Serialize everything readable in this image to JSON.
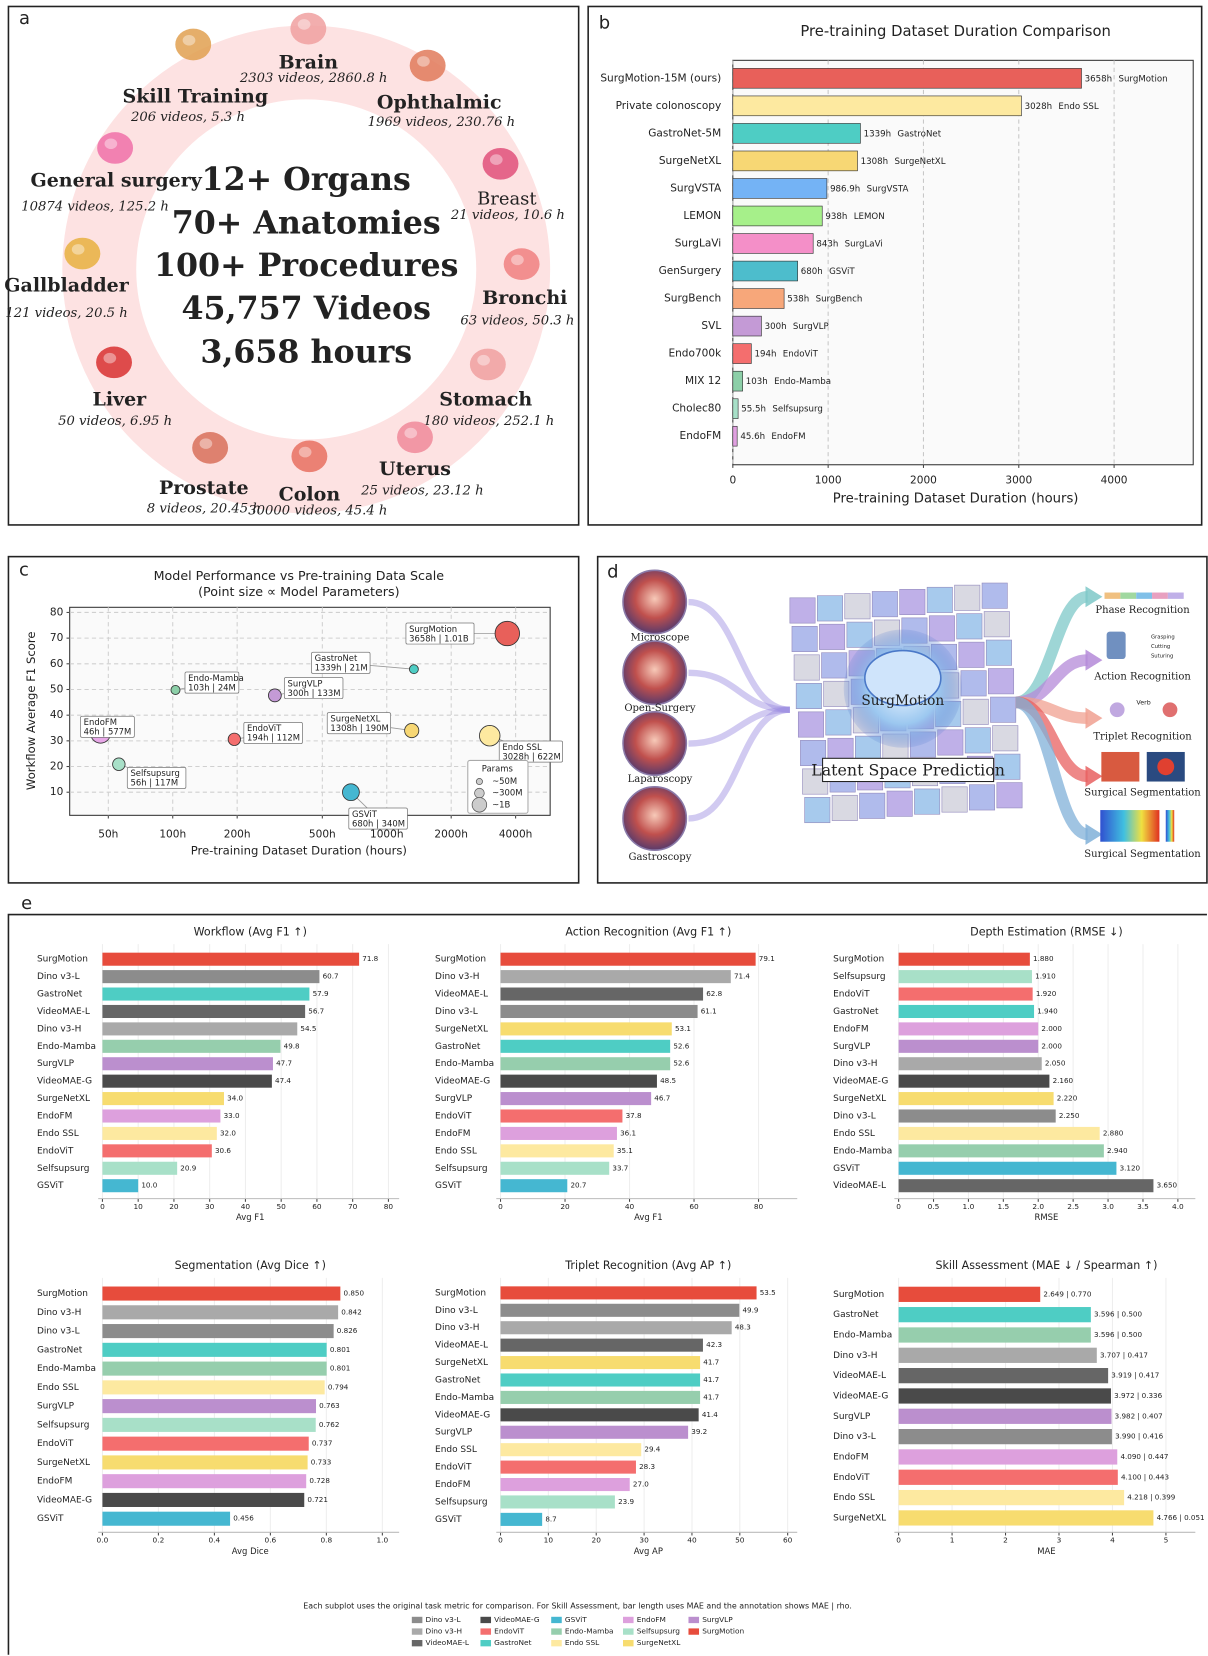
{
  "panel_a": {
    "label": "a",
    "headline": [
      {
        "text": "12+ Organs",
        "color": "#1f8ce0"
      },
      {
        "text": "70+ Anatomies",
        "color": "#1f8ce0"
      },
      {
        "text": "100+ Procedures",
        "color": "#a23be6"
      },
      {
        "text": "45,757 Videos",
        "color": "#a23be6"
      },
      {
        "text": "3,658 hours",
        "color": "#ee3333"
      }
    ],
    "name_color": "#1f8ce0",
    "stats_color": "#e84a4a",
    "organs": [
      {
        "name": "Brain",
        "stats": "2303 videos, 2860.8 h"
      },
      {
        "name": "Ophthalmic",
        "stats": "1969 videos, 230.76 h"
      },
      {
        "name": "Breast",
        "stats": "21 videos, 10.6 h"
      },
      {
        "name": "Bronchi",
        "stats": "63 videos, 50.3 h"
      },
      {
        "name": "Stomach",
        "stats": "180 videos, 252.1 h"
      },
      {
        "name": "Uterus",
        "stats": "25 videos, 23.12 h"
      },
      {
        "name": "Colon",
        "stats": "30000 videos, 45.4 h"
      },
      {
        "name": "Prostate",
        "stats": "8 videos, 20.45 h"
      },
      {
        "name": "Liver",
        "stats": "50 videos, 6.95 h"
      },
      {
        "name": "Gallbladder",
        "stats": "121 videos, 20.5 h"
      },
      {
        "name": "General surgery",
        "stats": "10874 videos, 125.2 h"
      },
      {
        "name": "Skill Training",
        "stats": "206 videos, 5.3 h"
      }
    ]
  },
  "panel_d": {
    "label": "d",
    "inputs": [
      "Microscope",
      "Open-Surgery",
      "Laparoscopy",
      "Gastroscopy"
    ],
    "center": "SurgMotion",
    "caption": "Latent Space Prediction",
    "outputs": [
      "Phase Recognition",
      "Action Recognition",
      "Triplet Recognition",
      "Surgical Segmentation",
      "Surgical Segmentation"
    ],
    "action_steps": [
      "Grasping",
      "Cutting",
      "Suturing"
    ],
    "triplet_verb": "Verb"
  },
  "panel_e": {
    "label": "e",
    "note": "Each subplot uses the original task metric for comparison. For Skill Assessment, bar length uses MAE and the annotation shows MAE | rho.",
    "legend": [
      {
        "name": "Dino v3-L",
        "color": "#8c8c8c"
      },
      {
        "name": "Dino v3-H",
        "color": "#a9a9a9"
      },
      {
        "name": "VideoMAE-L",
        "color": "#666666"
      },
      {
        "name": "VideoMAE-G",
        "color": "#4a4a4a"
      },
      {
        "name": "EndoViT",
        "color": "#f46e6e"
      },
      {
        "name": "GastroNet",
        "color": "#4ecdc4"
      },
      {
        "name": "GSViT",
        "color": "#45b7d1"
      },
      {
        "name": "Endo-Mamba",
        "color": "#96cead"
      },
      {
        "name": "Endo SSL",
        "color": "#fde9a0"
      },
      {
        "name": "EndoFM",
        "color": "#dda0dd"
      },
      {
        "name": "Selfsupsurg",
        "color": "#a8e0c8"
      },
      {
        "name": "SurgeNetXL",
        "color": "#f7dc6f"
      },
      {
        "name": "SurgVLP",
        "color": "#bb8fce"
      },
      {
        "name": "SurgMotion",
        "color": "#e74c3c"
      }
    ]
  },
  "chart_data": [
    {
      "type": "bar",
      "orientation": "horizontal",
      "panel_label": "b",
      "title": "Pre-training Dataset Duration Comparison",
      "xlabel": "Pre-training Dataset Duration (hours)",
      "categories": [
        "SurgMotion-15M (ours)",
        "Private colonoscopy",
        "GastroNet-5M",
        "SurgeNetXL",
        "SurgVSTA",
        "LEMON",
        "SurgLaVi",
        "GenSurgery",
        "SurgBench",
        "SVL",
        "Endo700k",
        "MIX 12",
        "Cholec80",
        "EndoFM"
      ],
      "values": [
        3658,
        3028,
        1339,
        1308,
        986.9,
        938,
        843,
        680,
        538,
        300,
        194,
        103,
        55.5,
        45.6
      ],
      "value_labels": [
        "3658h",
        "3028h",
        "1339h",
        "1308h",
        "986.9h",
        "938h",
        "843h",
        "680h",
        "538h",
        "300h",
        "194h",
        "103h",
        "55.5h",
        "45.6h"
      ],
      "bar_names": [
        "SurgMotion",
        "Endo SSL",
        "GastroNet",
        "SurgeNetXL",
        "SurgVSTA",
        "LEMON",
        "SurgLaVi",
        "GSViT",
        "SurgBench",
        "SurgVLP",
        "EndoViT",
        "Endo-Mamba",
        "Selfsupsurg",
        "EndoFM"
      ],
      "colors": [
        "#e8605a",
        "#fde9a0",
        "#4ecdc4",
        "#f7d774",
        "#74b3f5",
        "#a6f08a",
        "#f48fc8",
        "#4dbdcc",
        "#f7a77a",
        "#c49ad6",
        "#f46e6e",
        "#8ccfa8",
        "#a8e0c8",
        "#e0a0e0"
      ],
      "xlim": [
        0,
        4830
      ],
      "xticks": [
        0,
        1000,
        2000,
        3000,
        4000
      ],
      "grid": true,
      "highlight_index": 0,
      "highlight_color": "#e8453c"
    },
    {
      "type": "scatter",
      "panel_label": "c",
      "title": "Model Performance vs Pre-training Data Scale",
      "subtitle": "(Point size ∝ Model Parameters)",
      "xlabel": "Pre-training Dataset Duration (hours)",
      "ylabel": "Workflow Average F1 Score",
      "labels": [
        "SurgMotion",
        "GastroNet",
        "Endo-Mamba",
        "SurgVLP",
        "EndoFM",
        "EndoViT",
        "SurgeNetXL",
        "Endo SSL",
        "Selfsupsurg",
        "GSViT"
      ],
      "annotations": [
        "3658h | 1.01B",
        "1339h | 21M",
        "103h | 24M",
        "300h | 133M",
        "46h | 577M",
        "194h | 112M",
        "1308h | 190M",
        "3028h | 622M",
        "56h | 117M",
        "680h | 340M"
      ],
      "x": [
        3658,
        1339,
        103,
        300,
        46,
        194,
        1308,
        3028,
        56,
        680
      ],
      "y": [
        71.8,
        57.9,
        49.8,
        47.7,
        33.0,
        30.6,
        34.0,
        32.0,
        20.9,
        10.0
      ],
      "sizes": [
        1010,
        21,
        24,
        133,
        577,
        112,
        190,
        622,
        117,
        340
      ],
      "colors": [
        "#e8605a",
        "#4ecdc4",
        "#8ccfa8",
        "#c49ad6",
        "#e8a8e8",
        "#f46e6e",
        "#f7d774",
        "#fde9a0",
        "#a8e0c8",
        "#45b7d1"
      ],
      "xlim": [
        33,
        5800
      ],
      "ylim": [
        1,
        82
      ],
      "log_x": true,
      "grid": true,
      "xticks": [
        {
          "value": 50,
          "label": "50h"
        },
        {
          "value": 100,
          "label": "100h"
        },
        {
          "value": 200,
          "label": "200h"
        },
        {
          "value": 500,
          "label": "500h"
        },
        {
          "value": 1000,
          "label": "1000h"
        },
        {
          "value": 2000,
          "label": "2000h"
        },
        {
          "value": 4000,
          "label": "4000h"
        }
      ],
      "yticks": [
        10,
        20,
        30,
        40,
        50,
        60,
        70,
        80
      ],
      "size_legend": {
        "title": "Params",
        "entries": [
          {
            "value": 50,
            "label": "~50M"
          },
          {
            "value": 300,
            "label": "~300M"
          },
          {
            "value": 1000,
            "label": "~1B"
          }
        ]
      }
    },
    {
      "type": "bar",
      "orientation": "horizontal",
      "title": "Workflow (Avg F1 ↑)",
      "xlabel": "Avg F1",
      "categories": [
        "SurgMotion",
        "Dino v3-L",
        "GastroNet",
        "VideoMAE-L",
        "Dino v3-H",
        "Endo-Mamba",
        "SurgVLP",
        "VideoMAE-G",
        "SurgeNetXL",
        "EndoFM",
        "Endo SSL",
        "EndoViT",
        "Selfsupsurg",
        "GSViT"
      ],
      "values": [
        71.8,
        60.7,
        57.9,
        56.7,
        54.5,
        49.8,
        47.7,
        47.4,
        34.0,
        33.0,
        32.0,
        30.6,
        20.9,
        10.0
      ],
      "value_labels": [
        "71.8",
        "60.7",
        "57.9",
        "56.7",
        "54.5",
        "49.8",
        "47.7",
        "47.4",
        "34.0",
        "33.0",
        "32.0",
        "30.6",
        "20.9",
        "10.0"
      ],
      "xlim": [
        0,
        83
      ],
      "xticks": [
        0,
        10,
        20,
        30,
        40,
        50,
        60,
        70,
        80
      ],
      "grid": true,
      "highlight_index": 0,
      "highlight_color": "#e74c3c"
    },
    {
      "type": "bar",
      "orientation": "horizontal",
      "title": "Action Recognition (Avg F1 ↑)",
      "xlabel": "Avg F1",
      "categories": [
        "SurgMotion",
        "Dino v3-H",
        "VideoMAE-L",
        "Dino v3-L",
        "SurgeNetXL",
        "GastroNet",
        "Endo-Mamba",
        "VideoMAE-G",
        "SurgVLP",
        "EndoViT",
        "EndoFM",
        "Endo SSL",
        "Selfsupsurg",
        "GSViT"
      ],
      "values": [
        79.1,
        71.4,
        62.8,
        61.1,
        53.1,
        52.6,
        52.6,
        48.5,
        46.7,
        37.8,
        36.1,
        35.1,
        33.7,
        20.7
      ],
      "value_labels": [
        "79.1",
        "71.4",
        "62.8",
        "61.1",
        "53.1",
        "52.6",
        "52.6",
        "48.5",
        "46.7",
        "37.8",
        "36.1",
        "35.1",
        "33.7",
        "20.7"
      ],
      "xlim": [
        0,
        92
      ],
      "xticks": [
        0,
        20,
        40,
        60,
        80
      ],
      "grid": true,
      "highlight_index": 0,
      "highlight_color": "#e74c3c"
    },
    {
      "type": "bar",
      "orientation": "horizontal",
      "title": "Depth Estimation (RMSE ↓)",
      "xlabel": "RMSE",
      "categories": [
        "SurgMotion",
        "Selfsupsurg",
        "EndoViT",
        "GastroNet",
        "EndoFM",
        "SurgVLP",
        "Dino v3-H",
        "VideoMAE-G",
        "SurgeNetXL",
        "Dino v3-L",
        "Endo SSL",
        "Endo-Mamba",
        "GSViT",
        "VideoMAE-L"
      ],
      "values": [
        1.88,
        1.91,
        1.92,
        1.94,
        2.0,
        2.0,
        2.05,
        2.16,
        2.22,
        2.25,
        2.88,
        2.94,
        3.12,
        3.65
      ],
      "value_labels": [
        "1.880",
        "1.910",
        "1.920",
        "1.940",
        "2.000",
        "2.000",
        "2.050",
        "2.160",
        "2.220",
        "2.250",
        "2.880",
        "2.940",
        "3.120",
        "3.650"
      ],
      "xlim": [
        0,
        4.25
      ],
      "xticks": [
        0,
        0.5,
        {
          "value": 1,
          "label": "1.0"
        },
        1.5,
        {
          "value": 2,
          "label": "2.0"
        },
        2.5,
        {
          "value": 3,
          "label": "3.0"
        },
        3.5,
        {
          "value": 4,
          "label": "4.0"
        }
      ],
      "grid": true,
      "highlight_index": 0,
      "highlight_color": "#e74c3c"
    },
    {
      "type": "bar",
      "orientation": "horizontal",
      "title": "Segmentation (Avg Dice ↑)",
      "xlabel": "Avg Dice",
      "categories": [
        "SurgMotion",
        "Dino v3-H",
        "Dino v3-L",
        "GastroNet",
        "Endo-Mamba",
        "Endo SSL",
        "SurgVLP",
        "Selfsupsurg",
        "EndoViT",
        "SurgeNetXL",
        "EndoFM",
        "VideoMAE-G",
        "GSViT"
      ],
      "values": [
        0.85,
        0.842,
        0.826,
        0.801,
        0.801,
        0.794,
        0.763,
        0.762,
        0.737,
        0.733,
        0.728,
        0.721,
        0.456
      ],
      "value_labels": [
        "0.850",
        "0.842",
        "0.826",
        "0.801",
        "0.801",
        "0.794",
        "0.763",
        "0.762",
        "0.737",
        "0.733",
        "0.728",
        "0.721",
        "0.456"
      ],
      "xlim": [
        0,
        1.06
      ],
      "xticks": [
        {
          "value": 0,
          "label": "0.0"
        },
        0.2,
        0.4,
        0.6,
        0.8,
        {
          "value": 1,
          "label": "1.0"
        }
      ],
      "grid": true,
      "highlight_index": 0,
      "highlight_color": "#e74c3c"
    },
    {
      "type": "bar",
      "orientation": "horizontal",
      "title": "Triplet Recognition (Avg AP ↑)",
      "xlabel": "Avg AP",
      "categories": [
        "SurgMotion",
        "Dino v3-L",
        "Dino v3-H",
        "VideoMAE-L",
        "SurgeNetXL",
        "GastroNet",
        "Endo-Mamba",
        "VideoMAE-G",
        "SurgVLP",
        "Endo SSL",
        "EndoViT",
        "EndoFM",
        "Selfsupsurg",
        "GSViT"
      ],
      "values": [
        53.5,
        49.9,
        48.3,
        42.3,
        41.7,
        41.7,
        41.7,
        41.4,
        39.2,
        29.4,
        28.3,
        27.0,
        23.9,
        8.7
      ],
      "value_labels": [
        "53.5",
        "49.9",
        "48.3",
        "42.3",
        "41.7",
        "41.7",
        "41.7",
        "41.4",
        "39.2",
        "29.4",
        "28.3",
        "27.0",
        "23.9",
        "8.7"
      ],
      "xlim": [
        0,
        62
      ],
      "xticks": [
        0,
        10,
        20,
        30,
        40,
        50,
        60
      ],
      "grid": true,
      "highlight_index": 0,
      "highlight_color": "#e74c3c"
    },
    {
      "type": "bar",
      "orientation": "horizontal",
      "title": "Skill Assessment (MAE ↓ / Spearman ↑)",
      "xlabel": "MAE",
      "categories": [
        "SurgMotion",
        "GastroNet",
        "Endo-Mamba",
        "Dino v3-H",
        "VideoMAE-L",
        "VideoMAE-G",
        "SurgVLP",
        "Dino v3-L",
        "EndoFM",
        "EndoViT",
        "Endo SSL",
        "SurgeNetXL"
      ],
      "values": [
        2.649,
        3.596,
        3.596,
        3.707,
        3.919,
        3.972,
        3.982,
        3.99,
        4.09,
        4.1,
        4.218,
        4.766
      ],
      "value_labels": [
        "2.649 | 0.770",
        "3.596 | 0.500",
        "3.596 | 0.500",
        "3.707 | 0.417",
        "3.919 | 0.417",
        "3.972 | 0.336",
        "3.982 | 0.407",
        "3.990 | 0.416",
        "4.090 | 0.447",
        "4.100 | 0.443",
        "4.218 | 0.399",
        "4.766 | 0.051"
      ],
      "xlim": [
        0,
        5.55
      ],
      "xticks": [
        0,
        1,
        2,
        3,
        4,
        5
      ],
      "grid": true,
      "highlight_index": 0,
      "highlight_color": "#e74c3c"
    }
  ]
}
